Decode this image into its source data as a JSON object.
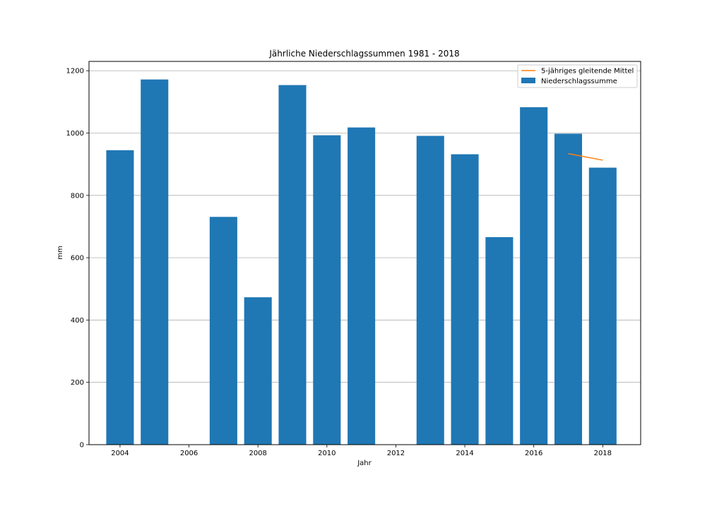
{
  "chart_data": {
    "type": "bar",
    "title": "Jährliche Niederschlagssummen 1981 - 2018",
    "xlabel": "Jahr",
    "ylabel": "mm",
    "xlim": [
      2003.1,
      2019.1
    ],
    "ylim": [
      0,
      1230
    ],
    "xticks": [
      2004,
      2006,
      2008,
      2010,
      2012,
      2014,
      2016,
      2018
    ],
    "yticks": [
      0,
      200,
      400,
      600,
      800,
      1000,
      1200
    ],
    "grid": "horizontal",
    "legend_position": "top-right",
    "bar_width": 0.8,
    "colors": {
      "bar": "#1f77b4",
      "line": "#ff7f0e",
      "grid": "#b0b0b0"
    },
    "series": [
      {
        "name": "Niederschlagssumme",
        "type": "bar",
        "x": [
          2004,
          2005,
          2007,
          2008,
          2009,
          2010,
          2011,
          2013,
          2014,
          2015,
          2016,
          2017,
          2018
        ],
        "values": [
          945,
          1172,
          731,
          473,
          1154,
          993,
          1018,
          991,
          932,
          666,
          1083,
          998,
          889
        ]
      },
      {
        "name": "5-jähriges gleitende Mittel",
        "type": "line",
        "x": [
          2017,
          2018
        ],
        "values": [
          934,
          913
        ]
      }
    ]
  }
}
